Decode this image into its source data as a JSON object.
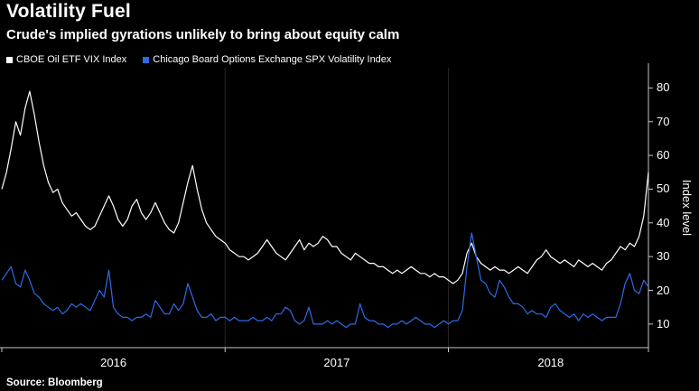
{
  "header": {
    "title": "Volatility Fuel",
    "subtitle": "Crude's implied gyrations unlikely to bring about equity calm"
  },
  "legend": {
    "items": [
      {
        "label": "CBOE Oil ETF VIX Index",
        "color": "#ffffff"
      },
      {
        "label": "Chicago Board Options Exchange SPX Volatility Index",
        "color": "#2e6be6"
      }
    ]
  },
  "footer": {
    "source": "Source: Bloomberg"
  },
  "chart_data": {
    "type": "line",
    "title": "Volatility Fuel",
    "subtitle": "Crude's implied gyrations unlikely to bring about equity calm",
    "ylabel": "Index level",
    "ylim": [
      3,
      86
    ],
    "yticks": [
      10,
      20,
      30,
      40,
      50,
      60,
      70,
      80
    ],
    "x": {
      "unit": "weekly",
      "range": "Jan 2016 - Nov 2018",
      "labels": [
        "2016",
        "2017",
        "2018"
      ],
      "label_indices": [
        24,
        72,
        118
      ],
      "tick_indices": [
        0,
        48,
        96,
        139
      ],
      "gridline_indices": [
        48,
        96
      ]
    },
    "series": [
      {
        "name": "CBOE Oil ETF VIX Index",
        "color": "#ffffff",
        "values": [
          50,
          55,
          62,
          70,
          66,
          74,
          79,
          72,
          64,
          57,
          52,
          49,
          50,
          46,
          44,
          42,
          43,
          41,
          39,
          38,
          39,
          42,
          45,
          48,
          45,
          41,
          39,
          41,
          45,
          47,
          43,
          41,
          43,
          46,
          43,
          40,
          38,
          37,
          40,
          46,
          52,
          57,
          50,
          44,
          40,
          38,
          36,
          35,
          34,
          32,
          31,
          30,
          30,
          29,
          30,
          31,
          33,
          35,
          33,
          31,
          30,
          29,
          31,
          33,
          35,
          32,
          34,
          33,
          34,
          36,
          35,
          33,
          33,
          31,
          30,
          29,
          31,
          30,
          29,
          28,
          28,
          27,
          27,
          26,
          25,
          26,
          25,
          26,
          27,
          26,
          25,
          25,
          24,
          25,
          24,
          24,
          23,
          22,
          23,
          25,
          31,
          34,
          30,
          28,
          27,
          26,
          27,
          26,
          26,
          25,
          26,
          27,
          26,
          25,
          27,
          29,
          30,
          32,
          30,
          29,
          28,
          29,
          28,
          27,
          29,
          28,
          27,
          28,
          27,
          26,
          28,
          29,
          31,
          33,
          32,
          34,
          33,
          36,
          42,
          55
        ]
      },
      {
        "name": "Chicago Board Options Exchange SPX Volatility Index",
        "color": "#2e6be6",
        "values": [
          23,
          25,
          27,
          22,
          21,
          26,
          23,
          19,
          18,
          16,
          15,
          14,
          15,
          13,
          14,
          16,
          15,
          16,
          15,
          14,
          17,
          20,
          18,
          26,
          15,
          13,
          12,
          12,
          11,
          12,
          12,
          13,
          12,
          17,
          15,
          13,
          13,
          16,
          14,
          16,
          22,
          18,
          14,
          12,
          12,
          13,
          11,
          12,
          12,
          11,
          12,
          11,
          11,
          11,
          12,
          11,
          11,
          12,
          11,
          13,
          13,
          15,
          14,
          11,
          10,
          11,
          15,
          10,
          10,
          10,
          11,
          10,
          11,
          10,
          9,
          10,
          10,
          16,
          12,
          11,
          11,
          10,
          10,
          9,
          10,
          10,
          11,
          10,
          11,
          12,
          11,
          10,
          10,
          9,
          10,
          11,
          10,
          11,
          11,
          14,
          27,
          37,
          30,
          23,
          22,
          19,
          18,
          23,
          21,
          18,
          16,
          16,
          15,
          13,
          14,
          13,
          13,
          12,
          15,
          16,
          14,
          13,
          12,
          13,
          11,
          13,
          12,
          13,
          12,
          11,
          12,
          12,
          12,
          16,
          22,
          25,
          20,
          19,
          23,
          21
        ]
      }
    ]
  }
}
